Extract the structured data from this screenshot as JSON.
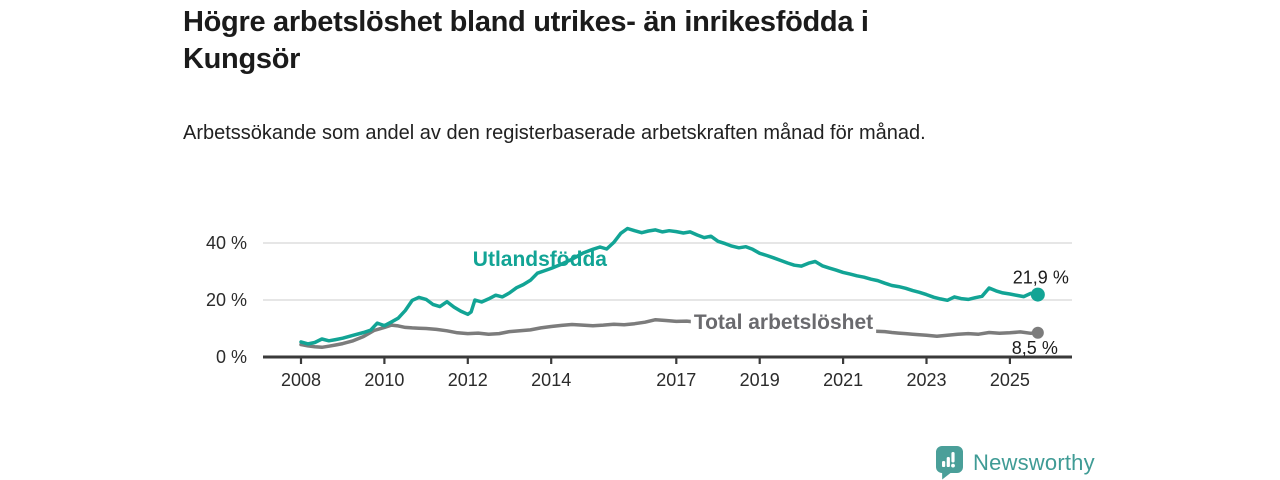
{
  "header": {
    "title": "Högre arbetslöshet bland utrikes- än inrikesfödda i Kungsör",
    "subtitle": "Arbetssökande som andel av den registerbaserade arbetskraften månad för månad."
  },
  "footer": {
    "brand": "Newsworthy",
    "logo_icon": "bar-chart-speech-bubble-icon"
  },
  "colors": {
    "accent_teal": "#12A495",
    "series_gray": "#7C7C7C",
    "series_label_gray": "#6A6A6E",
    "title_text": "#1B1B1B",
    "body_text": "#212121",
    "axis_line": "#3A3A3A",
    "tick_text": "#2B2B2B",
    "gridline": "#DEDEDE",
    "value_label_text": "#1B1B1B",
    "logo_teal": "#4A9F99",
    "background": "#FFFFFF"
  },
  "chart_data": {
    "type": "line",
    "unit": "%",
    "x_axis": {
      "ticks": [
        2008,
        2010,
        2012,
        2014,
        2017,
        2019,
        2021,
        2023,
        2025
      ],
      "tick_labels": [
        "2008",
        "2010",
        "2012",
        "2014",
        "2017",
        "2019",
        "2021",
        "2023",
        "2025"
      ],
      "range": [
        2007.1,
        2026.4
      ]
    },
    "y_axis": {
      "ticks": [
        0,
        20,
        40
      ],
      "tick_labels": [
        "0 %",
        "20 %",
        "40 %"
      ],
      "range": [
        0,
        48
      ],
      "gridlines": true
    },
    "legend_position": "inline-series-labels",
    "series": [
      {
        "name": "Total arbetslöshet",
        "color": "#7C7C7C",
        "end_value": 8.5,
        "end_label": "8,5 %",
        "label_anchor": {
          "year": 2017.42,
          "value": 9.8,
          "masked": true
        },
        "points": [
          [
            2008.0,
            4.4
          ],
          [
            2008.17,
            3.9
          ],
          [
            2008.33,
            3.6
          ],
          [
            2008.5,
            3.4
          ],
          [
            2008.67,
            3.8
          ],
          [
            2008.83,
            4.2
          ],
          [
            2009.0,
            4.7
          ],
          [
            2009.25,
            5.7
          ],
          [
            2009.5,
            7.2
          ],
          [
            2009.75,
            9.3
          ],
          [
            2010.0,
            10.4
          ],
          [
            2010.17,
            11.2
          ],
          [
            2010.33,
            10.9
          ],
          [
            2010.5,
            10.4
          ],
          [
            2010.67,
            10.2
          ],
          [
            2010.83,
            10.1
          ],
          [
            2011.0,
            10.0
          ],
          [
            2011.25,
            9.7
          ],
          [
            2011.5,
            9.2
          ],
          [
            2011.75,
            8.5
          ],
          [
            2012.0,
            8.2
          ],
          [
            2012.25,
            8.4
          ],
          [
            2012.5,
            8.0
          ],
          [
            2012.75,
            8.2
          ],
          [
            2013.0,
            8.9
          ],
          [
            2013.25,
            9.2
          ],
          [
            2013.5,
            9.5
          ],
          [
            2013.75,
            10.2
          ],
          [
            2014.0,
            10.7
          ],
          [
            2014.25,
            11.1
          ],
          [
            2014.5,
            11.4
          ],
          [
            2014.75,
            11.2
          ],
          [
            2015.0,
            11.0
          ],
          [
            2015.25,
            11.2
          ],
          [
            2015.5,
            11.5
          ],
          [
            2015.75,
            11.3
          ],
          [
            2016.0,
            11.7
          ],
          [
            2016.25,
            12.2
          ],
          [
            2016.5,
            13.1
          ],
          [
            2016.75,
            12.8
          ],
          [
            2017.0,
            12.5
          ],
          [
            2017.25,
            12.6
          ],
          [
            2017.5,
            12.2
          ],
          [
            2017.75,
            12.0
          ],
          [
            2018.0,
            11.7
          ],
          [
            2018.33,
            11.4
          ],
          [
            2018.67,
            11.2
          ],
          [
            2019.0,
            11.0
          ],
          [
            2019.5,
            10.7
          ],
          [
            2020.0,
            10.4
          ],
          [
            2020.5,
            10.0
          ],
          [
            2021.0,
            9.6
          ],
          [
            2021.5,
            9.2
          ],
          [
            2022.0,
            8.9
          ],
          [
            2022.17,
            8.6
          ],
          [
            2022.33,
            8.4
          ],
          [
            2022.5,
            8.2
          ],
          [
            2022.67,
            8.0
          ],
          [
            2022.83,
            7.8
          ],
          [
            2023.0,
            7.6
          ],
          [
            2023.25,
            7.3
          ],
          [
            2023.5,
            7.6
          ],
          [
            2023.75,
            8.0
          ],
          [
            2024.0,
            8.2
          ],
          [
            2024.25,
            8.0
          ],
          [
            2024.5,
            8.6
          ],
          [
            2024.75,
            8.3
          ],
          [
            2025.0,
            8.5
          ],
          [
            2025.25,
            8.8
          ],
          [
            2025.5,
            8.3
          ],
          [
            2025.67,
            8.5
          ]
        ]
      },
      {
        "name": "Utlandsfödda",
        "color": "#12A495",
        "end_value": 21.9,
        "end_label": "21,9 %",
        "label_anchor": {
          "year": 2012.12,
          "value": 31.9,
          "masked": false
        },
        "points": [
          [
            2008.0,
            5.3
          ],
          [
            2008.17,
            4.6
          ],
          [
            2008.33,
            5.1
          ],
          [
            2008.5,
            6.3
          ],
          [
            2008.67,
            5.7
          ],
          [
            2008.83,
            6.1
          ],
          [
            2009.0,
            6.6
          ],
          [
            2009.25,
            7.6
          ],
          [
            2009.5,
            8.6
          ],
          [
            2009.67,
            9.4
          ],
          [
            2009.83,
            11.9
          ],
          [
            2010.0,
            11.0
          ],
          [
            2010.17,
            12.3
          ],
          [
            2010.33,
            13.6
          ],
          [
            2010.5,
            16.3
          ],
          [
            2010.67,
            19.9
          ],
          [
            2010.83,
            20.9
          ],
          [
            2011.0,
            20.2
          ],
          [
            2011.17,
            18.4
          ],
          [
            2011.33,
            17.7
          ],
          [
            2011.5,
            19.4
          ],
          [
            2011.67,
            17.5
          ],
          [
            2011.83,
            16.1
          ],
          [
            2012.0,
            15.0
          ],
          [
            2012.08,
            15.8
          ],
          [
            2012.17,
            20.0
          ],
          [
            2012.33,
            19.3
          ],
          [
            2012.5,
            20.4
          ],
          [
            2012.67,
            21.7
          ],
          [
            2012.83,
            21.1
          ],
          [
            2013.0,
            22.5
          ],
          [
            2013.17,
            24.3
          ],
          [
            2013.33,
            25.4
          ],
          [
            2013.5,
            26.9
          ],
          [
            2013.67,
            29.4
          ],
          [
            2013.83,
            30.2
          ],
          [
            2014.0,
            31.1
          ],
          [
            2014.25,
            32.6
          ],
          [
            2014.5,
            34.3
          ],
          [
            2014.75,
            36.4
          ],
          [
            2015.0,
            37.8
          ],
          [
            2015.17,
            38.6
          ],
          [
            2015.33,
            37.9
          ],
          [
            2015.5,
            40.2
          ],
          [
            2015.67,
            43.4
          ],
          [
            2015.83,
            45.1
          ],
          [
            2016.0,
            44.3
          ],
          [
            2016.17,
            43.6
          ],
          [
            2016.33,
            44.2
          ],
          [
            2016.5,
            44.6
          ],
          [
            2016.67,
            43.9
          ],
          [
            2016.83,
            44.3
          ],
          [
            2017.0,
            44.0
          ],
          [
            2017.17,
            43.5
          ],
          [
            2017.33,
            43.9
          ],
          [
            2017.5,
            42.8
          ],
          [
            2017.67,
            41.9
          ],
          [
            2017.83,
            42.4
          ],
          [
            2018.0,
            40.6
          ],
          [
            2018.17,
            39.8
          ],
          [
            2018.33,
            38.9
          ],
          [
            2018.5,
            38.3
          ],
          [
            2018.67,
            38.7
          ],
          [
            2018.83,
            37.8
          ],
          [
            2019.0,
            36.4
          ],
          [
            2019.17,
            35.6
          ],
          [
            2019.33,
            34.8
          ],
          [
            2019.5,
            33.9
          ],
          [
            2019.67,
            33.0
          ],
          [
            2019.83,
            32.2
          ],
          [
            2020.0,
            31.9
          ],
          [
            2020.17,
            32.9
          ],
          [
            2020.33,
            33.5
          ],
          [
            2020.5,
            32.0
          ],
          [
            2020.67,
            31.2
          ],
          [
            2020.83,
            30.5
          ],
          [
            2021.0,
            29.7
          ],
          [
            2021.17,
            29.1
          ],
          [
            2021.33,
            28.5
          ],
          [
            2021.5,
            28.0
          ],
          [
            2021.67,
            27.3
          ],
          [
            2021.83,
            26.8
          ],
          [
            2022.0,
            25.9
          ],
          [
            2022.17,
            25.1
          ],
          [
            2022.33,
            24.7
          ],
          [
            2022.5,
            24.1
          ],
          [
            2022.67,
            23.3
          ],
          [
            2022.83,
            22.7
          ],
          [
            2023.0,
            21.9
          ],
          [
            2023.17,
            21.0
          ],
          [
            2023.33,
            20.4
          ],
          [
            2023.5,
            19.9
          ],
          [
            2023.67,
            21.1
          ],
          [
            2023.83,
            20.5
          ],
          [
            2024.0,
            20.2
          ],
          [
            2024.17,
            20.8
          ],
          [
            2024.33,
            21.3
          ],
          [
            2024.5,
            24.2
          ],
          [
            2024.67,
            23.2
          ],
          [
            2024.83,
            22.5
          ],
          [
            2025.0,
            22.1
          ],
          [
            2025.17,
            21.6
          ],
          [
            2025.33,
            21.2
          ],
          [
            2025.5,
            22.3
          ],
          [
            2025.67,
            21.9
          ]
        ]
      }
    ]
  }
}
